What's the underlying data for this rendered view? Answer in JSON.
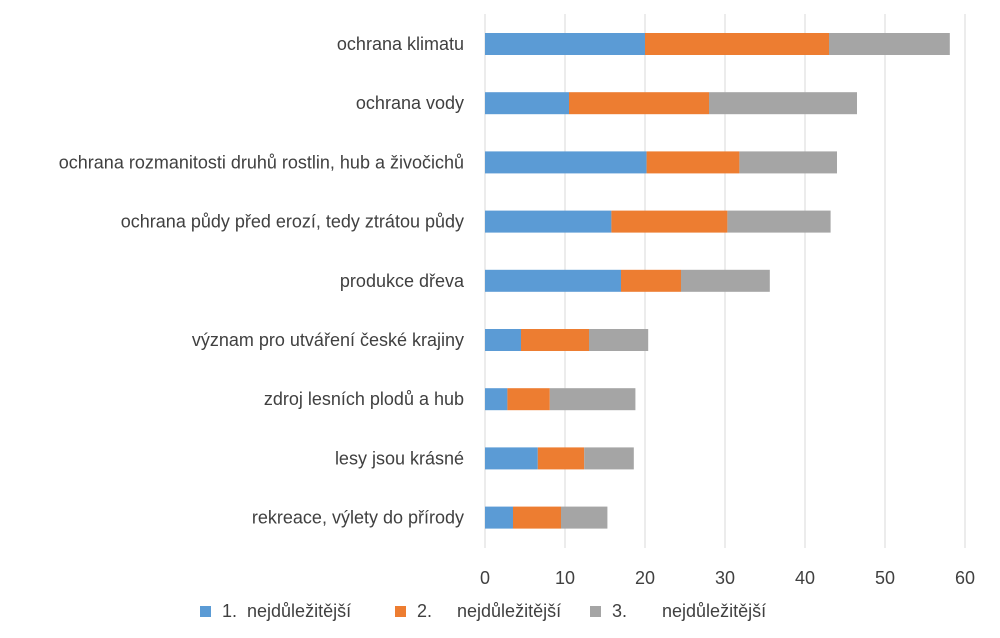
{
  "chart_data": {
    "type": "bar",
    "orientation": "horizontal",
    "stacked": true,
    "categories": [
      "ochrana klimatu",
      "ochrana vody",
      "ochrana rozmanitosti druhů rostlin, hub a živočichů",
      "ochrana půdy před erozí, tedy ztrátou půdy",
      "produkce dřeva",
      "význam pro utváření české krajiny",
      "zdroj lesních plodů a hub",
      "lesy jsou krásné",
      "rekreace, výlety do přírody"
    ],
    "series": [
      {
        "name": "1.  nejdůležitější",
        "color": "#5b9bd5",
        "values": [
          20.0,
          10.5,
          20.2,
          15.8,
          17.0,
          4.5,
          2.8,
          6.6,
          3.5
        ]
      },
      {
        "name": "2.     nejdůležitější",
        "color": "#ed7d31",
        "values": [
          23.0,
          17.5,
          11.6,
          14.5,
          7.5,
          8.5,
          5.3,
          5.8,
          6.0
        ]
      },
      {
        "name": "3.       nejdůležitější",
        "color": "#a5a5a5",
        "values": [
          15.1,
          18.5,
          12.2,
          12.9,
          11.1,
          7.4,
          10.7,
          6.2,
          5.8
        ]
      }
    ],
    "xlim": [
      0,
      60
    ],
    "x_ticks": [
      "0",
      "10",
      "20",
      "30",
      "40",
      "50",
      "60"
    ],
    "grid": "vertical",
    "legend_position": "bottom",
    "title": "",
    "xlabel": "",
    "ylabel": ""
  }
}
